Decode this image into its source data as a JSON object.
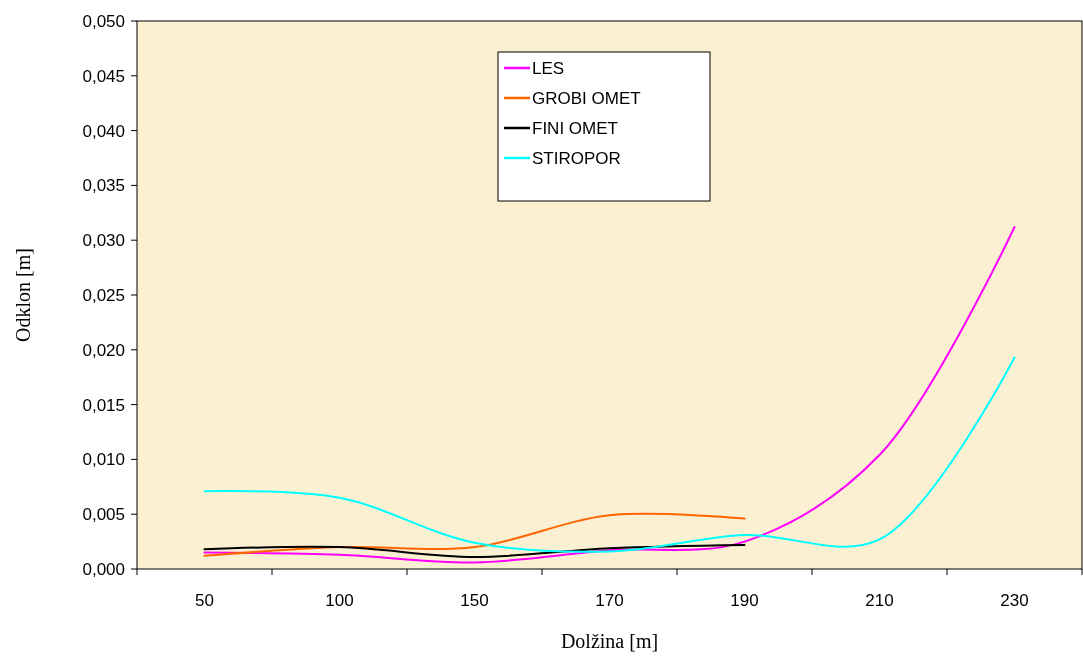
{
  "chart_data": {
    "type": "line",
    "xlabel": "Dolžina [m]",
    "ylabel": "Odklon [m]",
    "categories": [
      "50",
      "100",
      "150",
      "170",
      "190",
      "210",
      "230"
    ],
    "series": [
      {
        "name": "LES",
        "color": "#ff00ff",
        "values": [
          0.0015,
          0.0013,
          0.0006,
          0.0017,
          0.0025,
          0.0104,
          0.0312
        ]
      },
      {
        "name": "GROBI OMET",
        "color": "#ff6600",
        "values": [
          0.0012,
          0.002,
          0.002,
          0.0049,
          0.0046,
          null,
          null
        ]
      },
      {
        "name": "FINI OMET",
        "color": "#000000",
        "values": [
          0.0018,
          0.002,
          0.0011,
          0.0019,
          0.0022,
          null,
          null
        ]
      },
      {
        "name": "STIROPOR",
        "color": "#00ffff",
        "values": [
          0.0071,
          0.0065,
          0.0024,
          0.0016,
          0.0031,
          0.0027,
          0.0193
        ]
      }
    ],
    "ylim": [
      0,
      0.05
    ],
    "yticks": [
      {
        "value": 0,
        "label": "0,000"
      },
      {
        "value": 0.005,
        "label": "0,005"
      },
      {
        "value": 0.01,
        "label": "0,010"
      },
      {
        "value": 0.015,
        "label": "0,015"
      },
      {
        "value": 0.02,
        "label": "0,020"
      },
      {
        "value": 0.025,
        "label": "0,025"
      },
      {
        "value": 0.03,
        "label": "0,030"
      },
      {
        "value": 0.035,
        "label": "0,035"
      },
      {
        "value": 0.04,
        "label": "0,040"
      },
      {
        "value": 0.045,
        "label": "0,045"
      },
      {
        "value": 0.05,
        "label": "0,050"
      }
    ],
    "grid": false,
    "legend": "top",
    "marker": "none",
    "line_style": "solid"
  }
}
